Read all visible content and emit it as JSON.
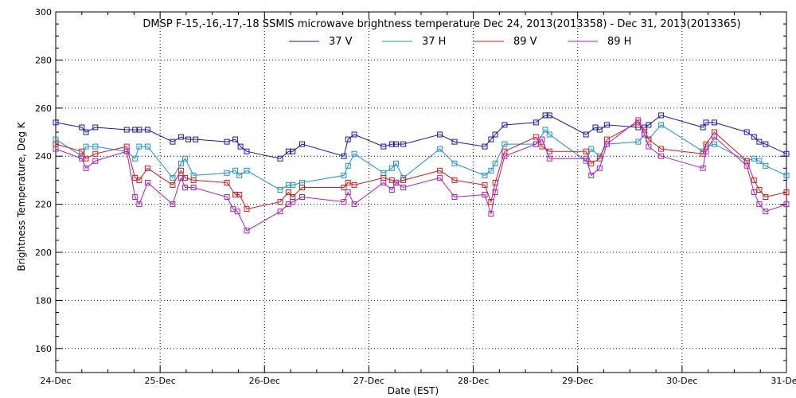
{
  "chart_data": {
    "type": "line",
    "title": "DMSP F-15,-16,-17,-18 SSMIS microwave brightness temperature Dec 24, 2013(2013358) - Dec 31, 2013(2013365)",
    "xlabel": "Date (EST)",
    "ylabel": "Brightness Temperature, Deg K",
    "ylim": [
      150,
      300
    ],
    "yticks": [
      160,
      180,
      200,
      220,
      240,
      260,
      280,
      300
    ],
    "xlim": [
      0,
      7
    ],
    "xticks": [
      {
        "value": 0,
        "label": "24-Dec"
      },
      {
        "value": 1,
        "label": "25-Dec"
      },
      {
        "value": 2,
        "label": "26-Dec"
      },
      {
        "value": 3,
        "label": "27-Dec"
      },
      {
        "value": 4,
        "label": "28-Dec"
      },
      {
        "value": 5,
        "label": "29-Dec"
      },
      {
        "value": 6,
        "label": "30-Dec"
      },
      {
        "value": 7,
        "label": "31-Dec"
      }
    ],
    "grid": true,
    "legend_position": "top-center",
    "series": [
      {
        "name": "37 V",
        "color": "#1a1aa6",
        "points": [
          [
            0.0,
            254
          ],
          [
            0.25,
            252
          ],
          [
            0.29,
            250
          ],
          [
            0.38,
            252
          ],
          [
            0.68,
            251
          ],
          [
            0.76,
            251
          ],
          [
            0.8,
            251
          ],
          [
            0.88,
            251
          ],
          [
            1.12,
            246
          ],
          [
            1.2,
            248
          ],
          [
            1.27,
            247
          ],
          [
            1.34,
            247
          ],
          [
            1.64,
            246
          ],
          [
            1.72,
            247
          ],
          [
            1.77,
            244
          ],
          [
            1.83,
            242
          ],
          [
            2.15,
            239
          ],
          [
            2.23,
            242
          ],
          [
            2.27,
            242
          ],
          [
            2.36,
            245
          ],
          [
            2.76,
            240
          ],
          [
            2.8,
            247
          ],
          [
            2.86,
            249
          ],
          [
            3.14,
            244
          ],
          [
            3.22,
            245
          ],
          [
            3.26,
            245
          ],
          [
            3.33,
            245
          ],
          [
            3.68,
            249
          ],
          [
            3.82,
            246
          ],
          [
            4.11,
            244
          ],
          [
            4.17,
            247
          ],
          [
            4.21,
            249
          ],
          [
            4.3,
            253
          ],
          [
            4.6,
            254
          ],
          [
            4.69,
            257
          ],
          [
            4.73,
            257
          ],
          [
            5.08,
            249
          ],
          [
            5.17,
            252
          ],
          [
            5.21,
            251
          ],
          [
            5.28,
            253
          ],
          [
            5.58,
            252
          ],
          [
            5.64,
            252
          ],
          [
            5.68,
            253
          ],
          [
            5.8,
            257
          ],
          [
            6.2,
            252
          ],
          [
            6.23,
            254
          ],
          [
            6.31,
            254
          ],
          [
            6.62,
            250
          ],
          [
            6.69,
            248
          ],
          [
            6.74,
            246
          ],
          [
            6.8,
            245
          ],
          [
            7.0,
            241
          ]
        ]
      },
      {
        "name": "37 H",
        "color": "#1f90d0",
        "points": [
          [
            0.0,
            247
          ],
          [
            0.25,
            240
          ],
          [
            0.29,
            244
          ],
          [
            0.38,
            244
          ],
          [
            0.68,
            242
          ],
          [
            0.76,
            239
          ],
          [
            0.8,
            244
          ],
          [
            0.88,
            244
          ],
          [
            1.12,
            231
          ],
          [
            1.2,
            237
          ],
          [
            1.24,
            239
          ],
          [
            1.32,
            232
          ],
          [
            1.64,
            233
          ],
          [
            1.72,
            234
          ],
          [
            1.76,
            232
          ],
          [
            1.83,
            234
          ],
          [
            2.15,
            226
          ],
          [
            2.23,
            228
          ],
          [
            2.27,
            228
          ],
          [
            2.36,
            229
          ],
          [
            2.76,
            232
          ],
          [
            2.8,
            236
          ],
          [
            2.86,
            241
          ],
          [
            3.14,
            233
          ],
          [
            3.22,
            235
          ],
          [
            3.26,
            237
          ],
          [
            3.33,
            231
          ],
          [
            3.68,
            243
          ],
          [
            3.82,
            237
          ],
          [
            4.11,
            232
          ],
          [
            4.17,
            234
          ],
          [
            4.21,
            237
          ],
          [
            4.3,
            245
          ],
          [
            4.6,
            245
          ],
          [
            4.69,
            251
          ],
          [
            4.73,
            249
          ],
          [
            5.08,
            238
          ],
          [
            5.13,
            243
          ],
          [
            5.21,
            240
          ],
          [
            5.28,
            245
          ],
          [
            5.58,
            246
          ],
          [
            5.64,
            249
          ],
          [
            5.68,
            247
          ],
          [
            5.8,
            253
          ],
          [
            6.2,
            242
          ],
          [
            6.23,
            244
          ],
          [
            6.31,
            245
          ],
          [
            6.62,
            238
          ],
          [
            6.69,
            239
          ],
          [
            6.74,
            238
          ],
          [
            6.8,
            236
          ],
          [
            7.0,
            232
          ]
        ]
      },
      {
        "name": "89 V",
        "color": "#d21c1c",
        "points": [
          [
            0.0,
            245
          ],
          [
            0.25,
            242
          ],
          [
            0.29,
            239
          ],
          [
            0.38,
            241
          ],
          [
            0.68,
            244
          ],
          [
            0.76,
            231
          ],
          [
            0.8,
            230
          ],
          [
            0.88,
            235
          ],
          [
            1.12,
            228
          ],
          [
            1.2,
            234
          ],
          [
            1.24,
            231
          ],
          [
            1.32,
            230
          ],
          [
            1.64,
            229
          ],
          [
            1.72,
            224
          ],
          [
            1.76,
            224
          ],
          [
            1.83,
            218
          ],
          [
            2.15,
            221
          ],
          [
            2.23,
            225
          ],
          [
            2.27,
            223
          ],
          [
            2.36,
            227
          ],
          [
            2.76,
            227
          ],
          [
            2.8,
            229
          ],
          [
            2.86,
            228
          ],
          [
            3.14,
            231
          ],
          [
            3.22,
            230
          ],
          [
            3.26,
            229
          ],
          [
            3.33,
            230
          ],
          [
            3.68,
            234
          ],
          [
            3.82,
            230
          ],
          [
            4.11,
            228
          ],
          [
            4.17,
            221
          ],
          [
            4.21,
            229
          ],
          [
            4.3,
            242
          ],
          [
            4.6,
            248
          ],
          [
            4.66,
            244
          ],
          [
            4.73,
            242
          ],
          [
            5.08,
            242
          ],
          [
            5.13,
            237
          ],
          [
            5.21,
            239
          ],
          [
            5.28,
            247
          ],
          [
            5.58,
            254
          ],
          [
            5.64,
            251
          ],
          [
            5.68,
            247
          ],
          [
            5.8,
            243
          ],
          [
            6.2,
            241
          ],
          [
            6.23,
            245
          ],
          [
            6.31,
            250
          ],
          [
            6.62,
            238
          ],
          [
            6.69,
            230
          ],
          [
            6.74,
            226
          ],
          [
            6.8,
            223
          ],
          [
            7.0,
            225
          ]
        ]
      },
      {
        "name": "89 H",
        "color": "#b01fb8",
        "points": [
          [
            0.0,
            243
          ],
          [
            0.25,
            239
          ],
          [
            0.29,
            235
          ],
          [
            0.38,
            238
          ],
          [
            0.68,
            242
          ],
          [
            0.76,
            223
          ],
          [
            0.8,
            220
          ],
          [
            0.88,
            229
          ],
          [
            1.12,
            220
          ],
          [
            1.2,
            231
          ],
          [
            1.24,
            227
          ],
          [
            1.32,
            227
          ],
          [
            1.64,
            223
          ],
          [
            1.7,
            218
          ],
          [
            1.74,
            217
          ],
          [
            1.83,
            209
          ],
          [
            2.15,
            217
          ],
          [
            2.23,
            220
          ],
          [
            2.27,
            221
          ],
          [
            2.36,
            223
          ],
          [
            2.76,
            221
          ],
          [
            2.8,
            225
          ],
          [
            2.86,
            220
          ],
          [
            3.14,
            229
          ],
          [
            3.22,
            226
          ],
          [
            3.26,
            229
          ],
          [
            3.33,
            227
          ],
          [
            3.68,
            231
          ],
          [
            3.82,
            223
          ],
          [
            4.11,
            224
          ],
          [
            4.17,
            216
          ],
          [
            4.21,
            225
          ],
          [
            4.3,
            240
          ],
          [
            4.6,
            245
          ],
          [
            4.66,
            247
          ],
          [
            4.73,
            239
          ],
          [
            5.08,
            239
          ],
          [
            5.13,
            232
          ],
          [
            5.21,
            235
          ],
          [
            5.28,
            245
          ],
          [
            5.58,
            255
          ],
          [
            5.64,
            249
          ],
          [
            5.68,
            244
          ],
          [
            5.8,
            240
          ],
          [
            6.2,
            235
          ],
          [
            6.23,
            242
          ],
          [
            6.31,
            248
          ],
          [
            6.62,
            236
          ],
          [
            6.69,
            225
          ],
          [
            6.74,
            220
          ],
          [
            6.8,
            217
          ],
          [
            7.0,
            220
          ]
        ]
      }
    ]
  }
}
